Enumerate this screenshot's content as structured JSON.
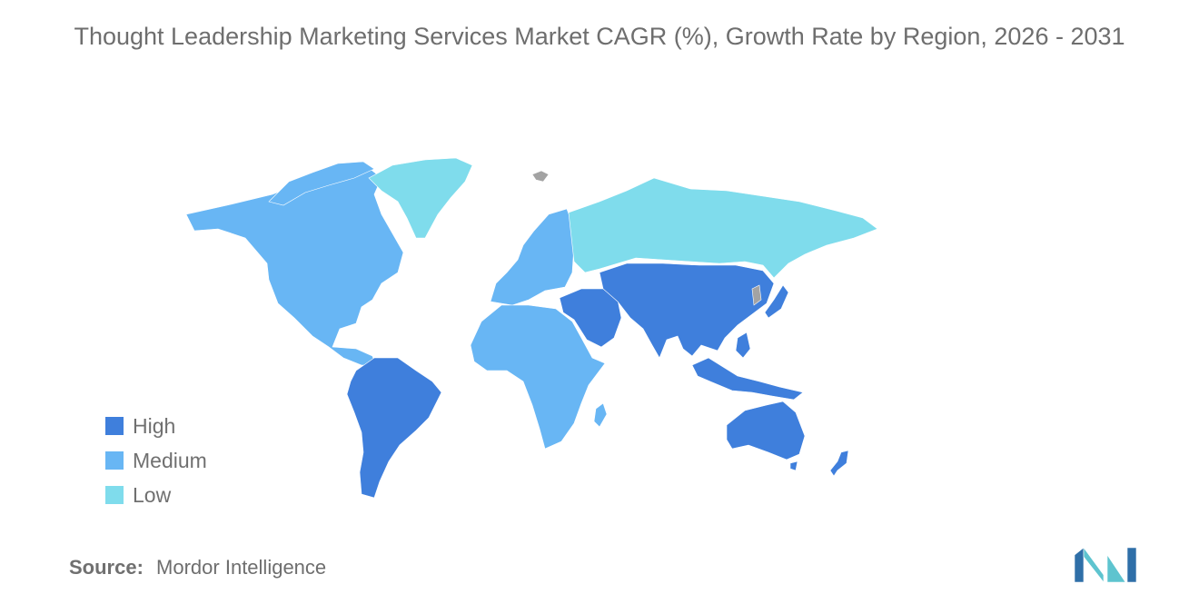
{
  "title": "Thought Leadership Marketing Services Market CAGR (%), Growth Rate by Region, 2026 - 2031",
  "legend": [
    {
      "label": "High",
      "color": "#3f7fdc"
    },
    {
      "label": "Medium",
      "color": "#68b6f4"
    },
    {
      "label": "Low",
      "color": "#7fdcec"
    }
  ],
  "no_data_color": "#a3a3a3",
  "regions": [
    {
      "name": "North America",
      "level": "Medium"
    },
    {
      "name": "South America",
      "level": "High"
    },
    {
      "name": "Europe",
      "level": "Medium"
    },
    {
      "name": "Africa",
      "level": "Medium"
    },
    {
      "name": "Russia",
      "level": "Low"
    },
    {
      "name": "Greenland",
      "level": "Low"
    },
    {
      "name": "Middle East",
      "level": "High"
    },
    {
      "name": "Asia",
      "level": "High"
    },
    {
      "name": "Australia and New Zealand",
      "level": "High"
    }
  ],
  "source": {
    "label": "Source:",
    "value": "Mordor Intelligence"
  },
  "logo": {
    "icon": "mordor-intelligence-logo",
    "colors": [
      "#2f6fa8",
      "#5ec4cf"
    ]
  }
}
